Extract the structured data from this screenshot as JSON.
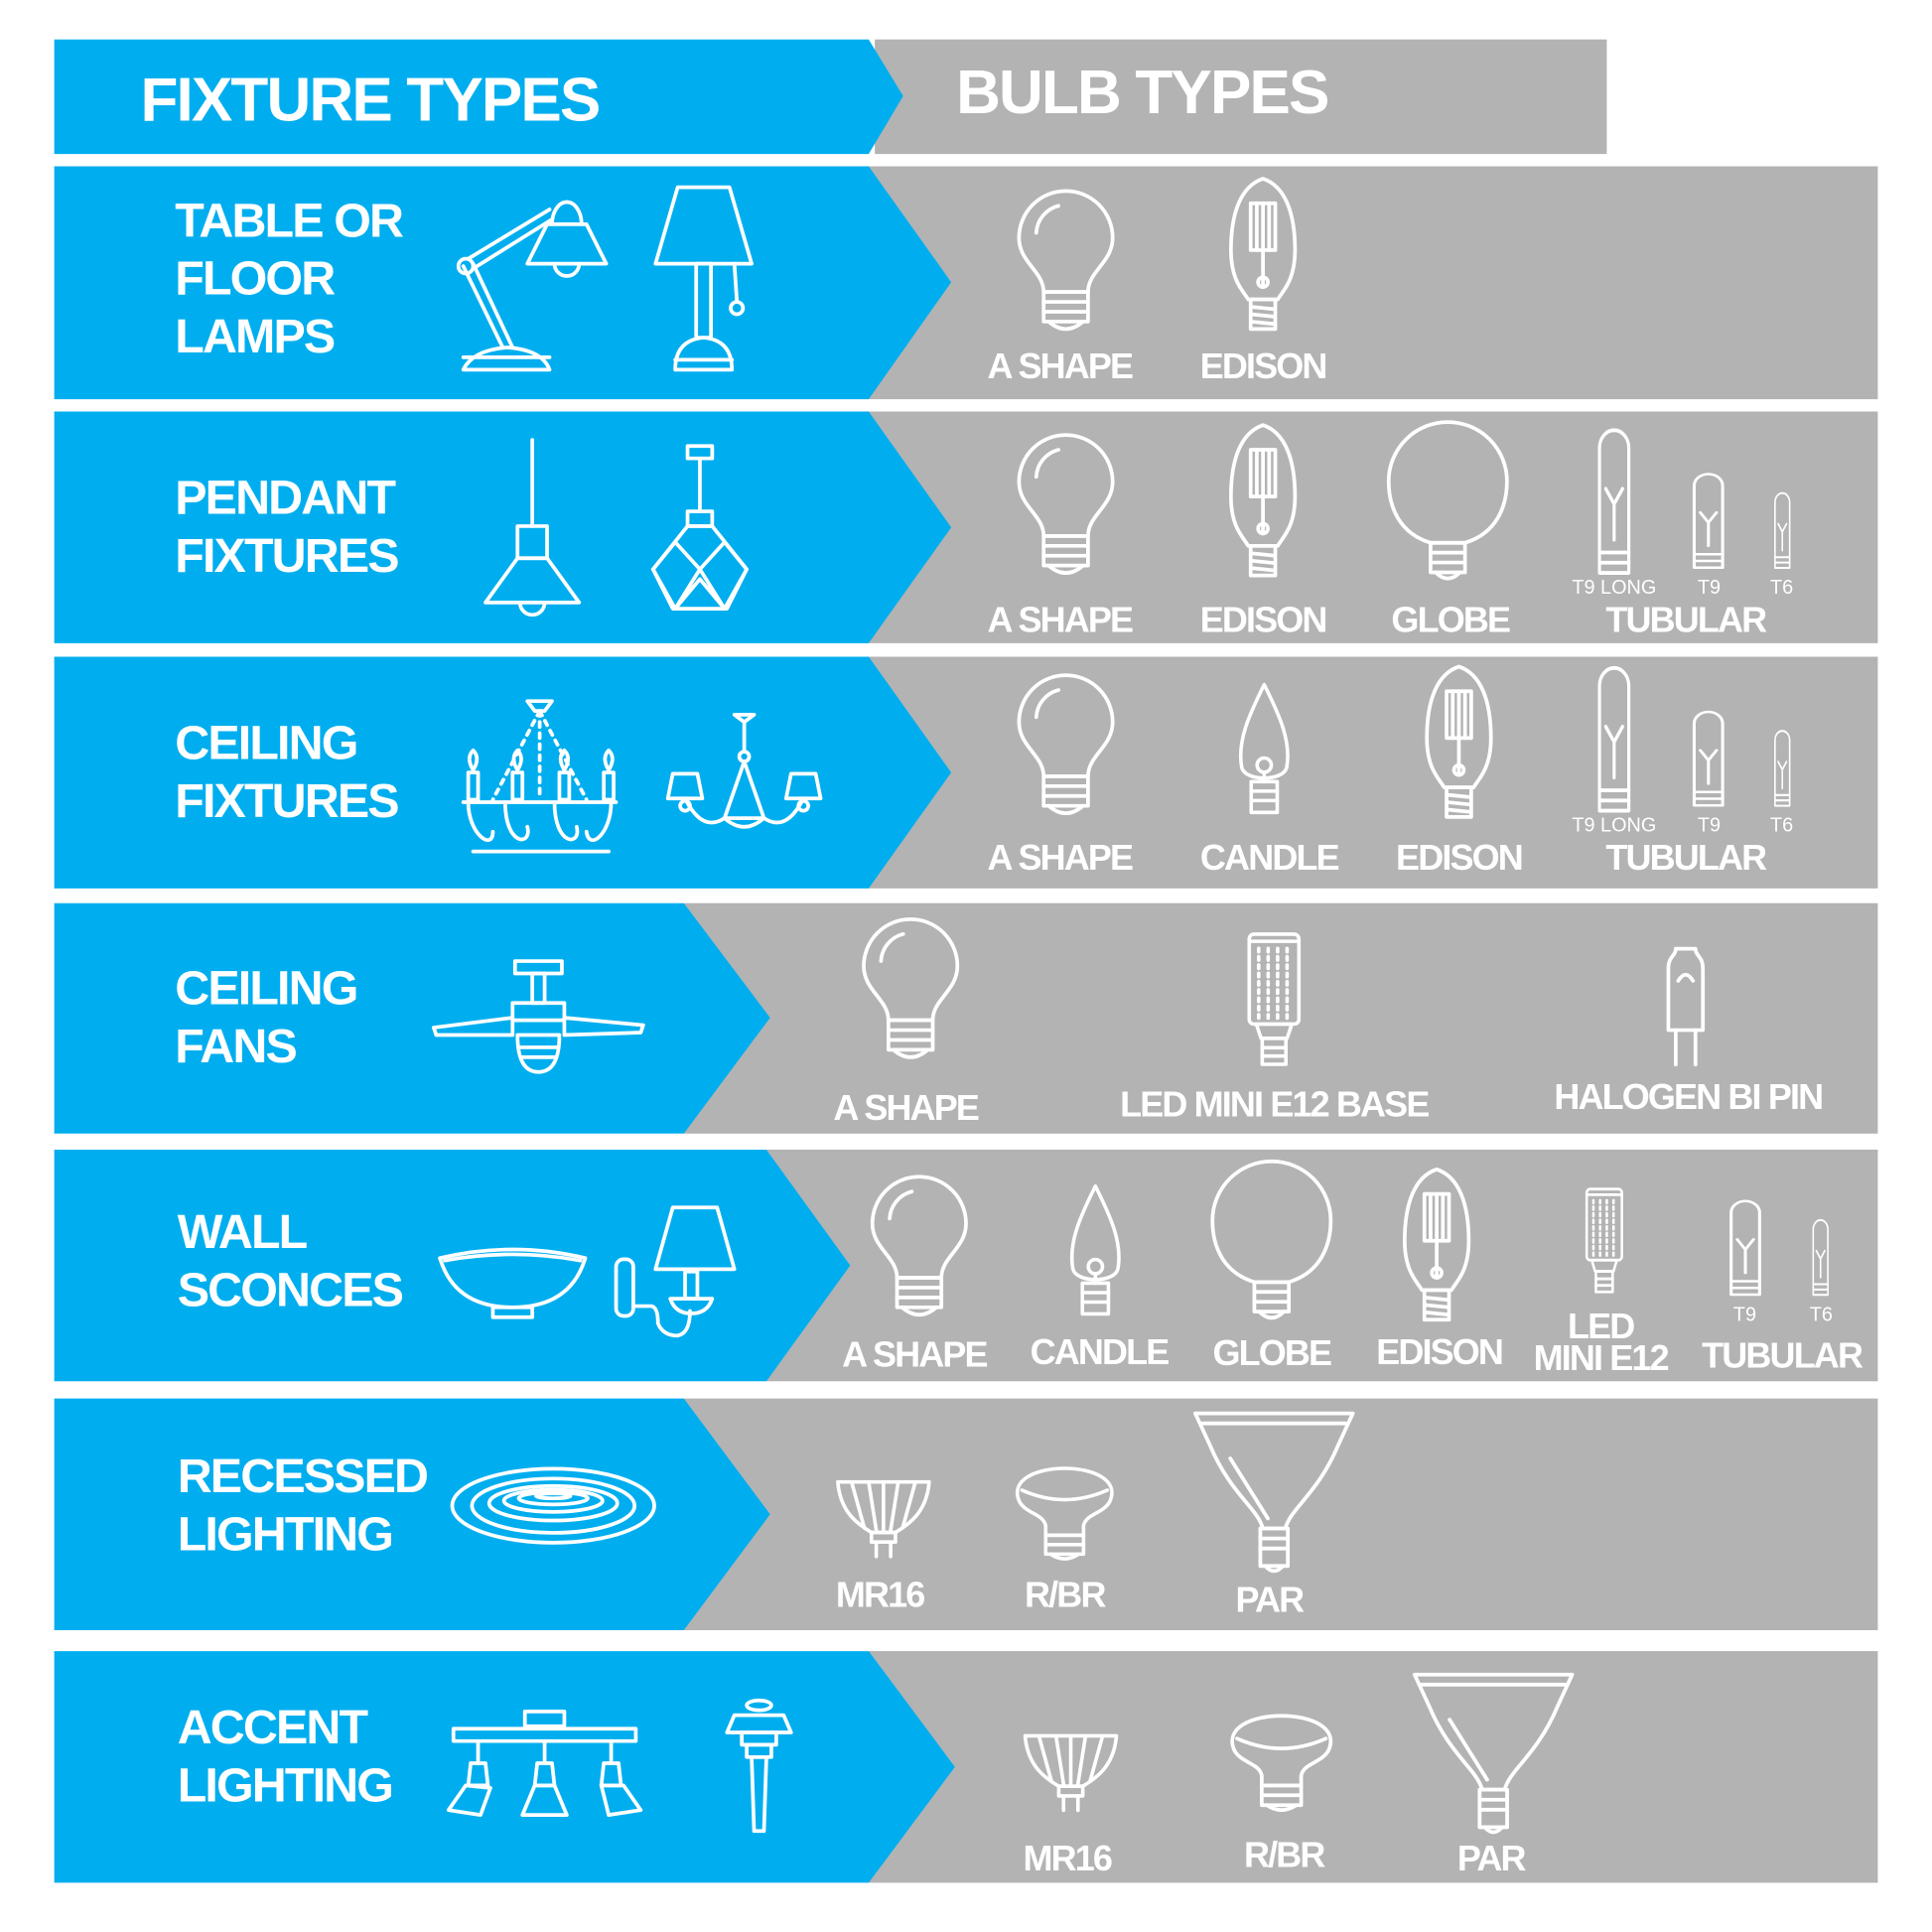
{
  "colors": {
    "fixture_blue": "#00aeef",
    "bulb_gray": "#b3b3b3",
    "text": "#ffffff"
  },
  "header": {
    "fixture_title": "FIXTURE TYPES",
    "bulb_title": "BULB TYPES"
  },
  "rows": [
    {
      "fixture_lines": [
        "TABLE OR",
        "FLOOR",
        "LAMPS"
      ],
      "fixture_icons": [
        "desk-lamp-icon",
        "table-lamp-icon"
      ],
      "bulbs": [
        {
          "label": "A SHAPE",
          "icon": "a-shape-bulb-icon"
        },
        {
          "label": "EDISON",
          "icon": "edison-bulb-icon"
        }
      ]
    },
    {
      "fixture_lines": [
        "PENDANT",
        "FIXTURES"
      ],
      "fixture_icons": [
        "cone-pendant-icon",
        "geometric-pendant-icon"
      ],
      "bulbs": [
        {
          "label": "A SHAPE",
          "icon": "a-shape-bulb-icon"
        },
        {
          "label": "EDISON",
          "icon": "edison-bulb-icon"
        },
        {
          "label": "GLOBE",
          "icon": "globe-bulb-icon"
        },
        {
          "label": "TUBULAR",
          "icon": "tubular-bulb-icon",
          "variants": [
            "T9 LONG",
            "T9",
            "T6"
          ]
        }
      ]
    },
    {
      "fixture_lines": [
        "CEILING",
        "FIXTURES"
      ],
      "fixture_icons": [
        "candle-chandelier-icon",
        "shaded-chandelier-icon"
      ],
      "bulbs": [
        {
          "label": "A SHAPE",
          "icon": "a-shape-bulb-icon"
        },
        {
          "label": "CANDLE",
          "icon": "candle-bulb-icon"
        },
        {
          "label": "EDISON",
          "icon": "edison-bulb-icon"
        },
        {
          "label": "TUBULAR",
          "icon": "tubular-bulb-icon",
          "variants": [
            "T9 LONG",
            "T9",
            "T6"
          ]
        }
      ]
    },
    {
      "fixture_lines": [
        "CEILING",
        "FANS"
      ],
      "fixture_icons": [
        "ceiling-fan-icon"
      ],
      "bulbs": [
        {
          "label": "A SHAPE",
          "icon": "a-shape-bulb-icon"
        },
        {
          "label": "LED MINI E12 BASE",
          "icon": "led-corn-bulb-icon"
        },
        {
          "label": "HALOGEN BI PIN",
          "icon": "halogen-bi-pin-icon"
        }
      ]
    },
    {
      "fixture_lines": [
        "WALL",
        "SCONCES"
      ],
      "fixture_icons": [
        "bowl-sconce-icon",
        "arm-sconce-icon"
      ],
      "bulbs": [
        {
          "label": "A SHAPE",
          "icon": "a-shape-bulb-icon"
        },
        {
          "label": "CANDLE",
          "icon": "candle-bulb-icon"
        },
        {
          "label": "GLOBE",
          "icon": "globe-bulb-icon"
        },
        {
          "label": "EDISON",
          "icon": "edison-bulb-icon"
        },
        {
          "label_lines": [
            "LED",
            "MINI E12"
          ],
          "icon": "led-corn-bulb-icon"
        },
        {
          "label": "TUBULAR",
          "icon": "tubular-bulb-icon",
          "variants": [
            "T9",
            "T6"
          ]
        }
      ]
    },
    {
      "fixture_lines": [
        "RECESSED",
        "LIGHTING"
      ],
      "fixture_icons": [
        "recessed-light-icon"
      ],
      "bulbs": [
        {
          "label": "MR16",
          "icon": "mr16-bulb-icon"
        },
        {
          "label": "R/BR",
          "icon": "rbr-bulb-icon"
        },
        {
          "label": "PAR",
          "icon": "par-bulb-icon"
        }
      ]
    },
    {
      "fixture_lines": [
        "ACCENT",
        "LIGHTING"
      ],
      "fixture_icons": [
        "track-light-icon",
        "path-light-icon"
      ],
      "bulbs": [
        {
          "label": "MR16",
          "icon": "mr16-bulb-icon"
        },
        {
          "label": "R/BR",
          "icon": "rbr-bulb-icon"
        },
        {
          "label": "PAR",
          "icon": "par-bulb-icon"
        }
      ]
    }
  ]
}
